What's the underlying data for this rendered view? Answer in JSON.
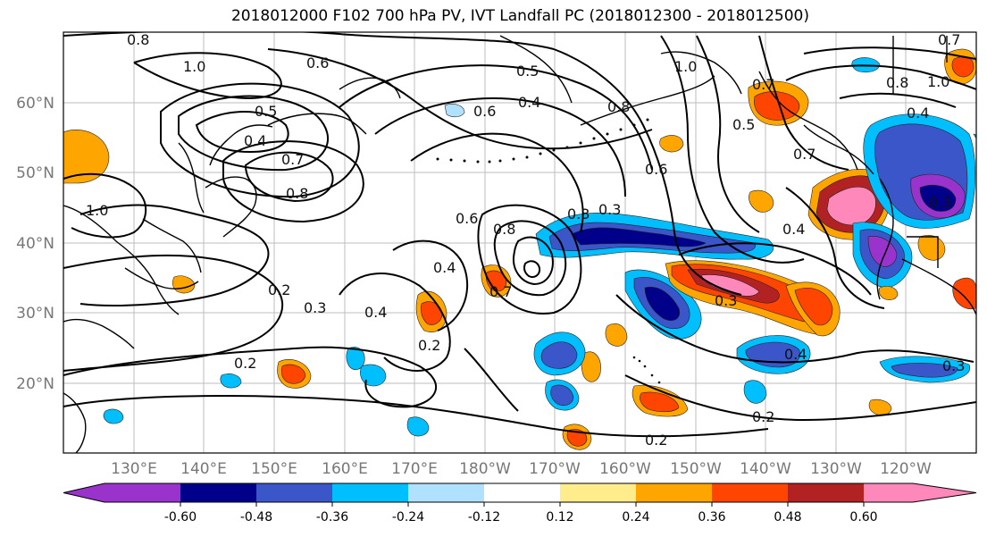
{
  "title": "2018012000 F102 700 hPa PV, IVT Landfall PC (2018012300 - 2018012500)",
  "lat_labels": [
    "60°N",
    "50°N",
    "40°N",
    "30°N",
    "20°N"
  ],
  "lon_labels": [
    "130°E",
    "140°E",
    "150°E",
    "160°E",
    "170°E",
    "180°W",
    "170°W",
    "160°W",
    "150°W",
    "140°W",
    "130°W",
    "120°W"
  ],
  "colorbar": {
    "colors": [
      "#9933cc",
      "#00008b",
      "#3a56c8",
      "#00bfff",
      "#b0e2ff",
      "#ffffff",
      "#ffec8b",
      "#ffa500",
      "#ff4500",
      "#b22222",
      "#ff88bb"
    ],
    "tick_labels": [
      "-0.60",
      "-0.48",
      "-0.36",
      "-0.24",
      "-0.12",
      "0.12",
      "0.24",
      "0.36",
      "0.48",
      "0.60"
    ]
  },
  "contour_labels": [
    "0.8",
    "1.0",
    "0.6",
    "0.5",
    "0.4",
    "0.7",
    "0.8",
    "1.0",
    "0.2",
    "0.3",
    "0.4",
    "0.2",
    "0.6",
    "0.8",
    "0.4",
    "0.7",
    "0.3",
    "0.2",
    "0.5",
    "0.3",
    "0.6",
    "0.8",
    "1.0",
    "0.7",
    "0.5",
    "0.7",
    "0.4",
    "0.3",
    "0.4",
    "0.3",
    "0.2",
    "0.2",
    "0.6",
    "0.4",
    "0.4",
    "0.3",
    "1.0",
    "0.7",
    "0.8"
  ]
}
